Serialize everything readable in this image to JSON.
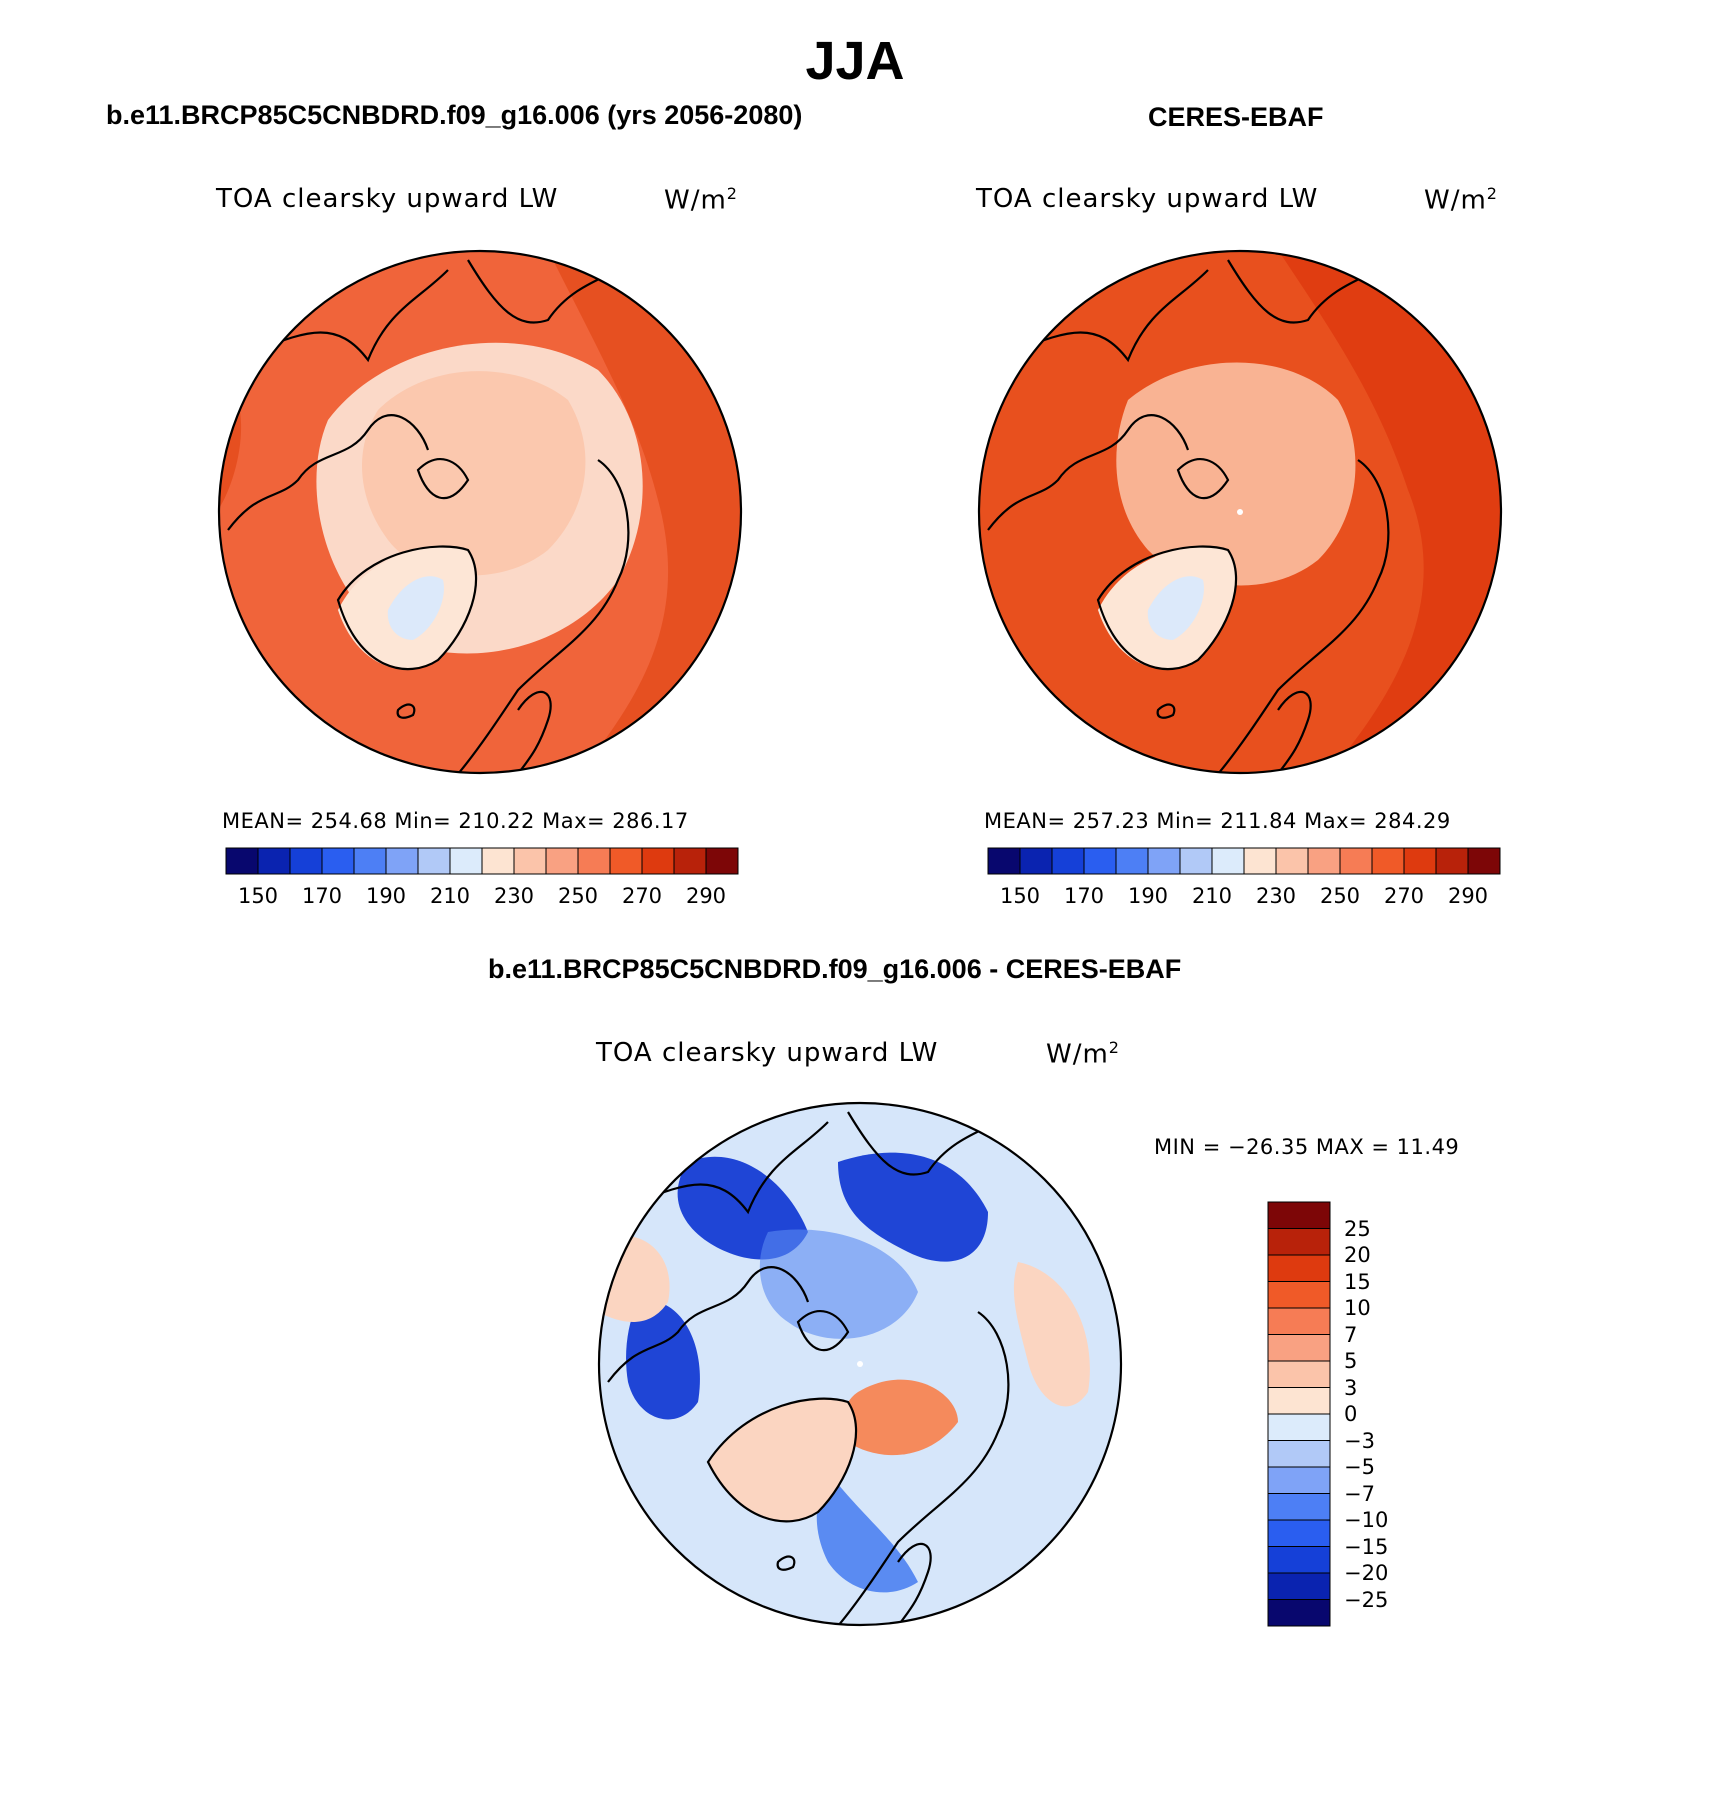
{
  "main_title": "JJA",
  "panels": {
    "model": {
      "title": "b.e11.BRCP85C5CNBDRD.f09_g16.006 (yrs 2056-2080)",
      "variable": "TOA clearsky upward LW",
      "units_base": "W/m",
      "units_exp": "2",
      "stats": "MEAN= 254.68   Min= 210.22   Max= 286.17"
    },
    "obs": {
      "title": "CERES-EBAF",
      "variable": "TOA clearsky upward LW",
      "units_base": "W/m",
      "units_exp": "2",
      "stats": "MEAN= 257.23   Min= 211.84   Max= 284.29"
    },
    "diff": {
      "title": "b.e11.BRCP85C5CNBDRD.f09_g16.006 - CERES-EBAF",
      "variable": "TOA clearsky upward LW",
      "units_base": "W/m",
      "units_exp": "2",
      "minmax": "MIN = −26.35 MAX =   11.49"
    }
  },
  "abs_colorbar": {
    "colors": [
      "#08076e",
      "#0a23b0",
      "#1540d8",
      "#2a5ef0",
      "#4d7ff5",
      "#7fa3f7",
      "#b1c9f7",
      "#dcebfb",
      "#fde4d2",
      "#fbc4aa",
      "#f9a182",
      "#f67c55",
      "#f05a28",
      "#de3a0f",
      "#b8220a",
      "#7d0607"
    ],
    "tick_labels": [
      "150",
      "170",
      "190",
      "210",
      "230",
      "250",
      "270",
      "290"
    ]
  },
  "diff_colorbar": {
    "colors_top_to_bottom": [
      "#7d0607",
      "#b8220a",
      "#de3a0f",
      "#f05a28",
      "#f67c55",
      "#f9a182",
      "#fbc4aa",
      "#fde4d2",
      "#dcebfb",
      "#b1c9f7",
      "#7fa3f7",
      "#4d7ff5",
      "#2a5ef0",
      "#1540d8",
      "#0a23b0",
      "#08076e"
    ],
    "tick_labels": [
      "25",
      "20",
      "15",
      "10",
      "7",
      "5",
      "3",
      "0",
      "−3",
      "−5",
      "−7",
      "−10",
      "−15",
      "−20",
      "−25"
    ]
  },
  "colors": {
    "model_ocean": "#f0643a",
    "model_warm": "#e34a1a",
    "model_central": "#fbc8ae",
    "model_mid": "#fbd9c8",
    "model_greenland": "#fde6d6",
    "model_ice": "#dce9fa",
    "obs_ocean": "#e8501e",
    "obs_warm": "#de3a0f",
    "obs_central": "#f9b393",
    "diff_base": "#d6e6fa",
    "diff_deep": "#1f45d6",
    "diff_mid": "#5a8bf2",
    "diff_pos": "#f58a5c",
    "diff_pale_pos": "#fbd5c1"
  }
}
